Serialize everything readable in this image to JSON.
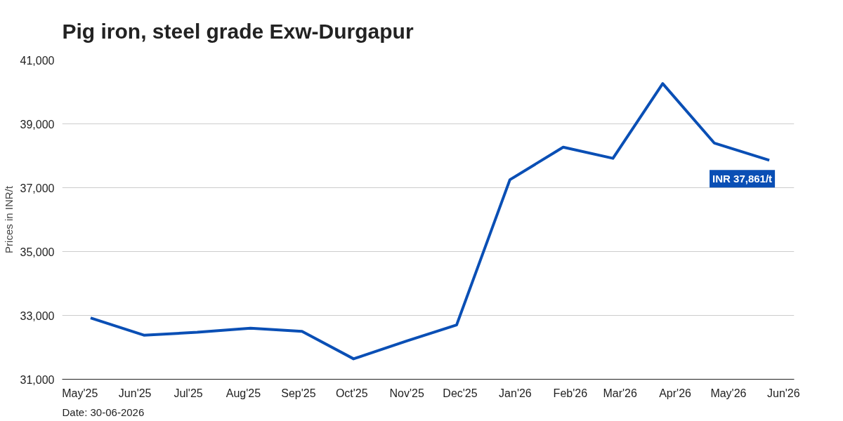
{
  "chart_data": {
    "type": "line",
    "title": "Pig iron, steel grade Exw-Durgapur",
    "ylabel": "Prices in INR/t",
    "x": [
      "2025-05-07",
      "2025-06-06",
      "2025-07-06",
      "2025-08-05",
      "2025-09-03",
      "2025-10-02",
      "2025-11-01",
      "2025-11-29",
      "2025-12-29",
      "2026-01-28",
      "2026-02-25",
      "2026-03-25",
      "2026-04-23",
      "2026-05-24"
    ],
    "series": [
      {
        "color": "#0a4fb5",
        "values": [
          32920,
          32380,
          32470,
          32600,
          32500,
          31640,
          32200,
          32700,
          37250,
          38270,
          37920,
          40260,
          38400,
          37861
        ]
      }
    ],
    "xlim": [
      "2025-04-21",
      "2026-06-07"
    ],
    "xticks": [
      {
        "value": "2025-05",
        "label": "May'25"
      },
      {
        "value": "2025-06",
        "label": "Jun'25"
      },
      {
        "value": "2025-07",
        "label": "Jul'25"
      },
      {
        "value": "2025-08",
        "label": "Aug'25"
      },
      {
        "value": "2025-09",
        "label": "Sep'25"
      },
      {
        "value": "2025-10",
        "label": "Oct'25"
      },
      {
        "value": "2025-11",
        "label": "Nov'25"
      },
      {
        "value": "2025-12",
        "label": "Dec'25"
      },
      {
        "value": "2026-01",
        "label": "Jan'26"
      },
      {
        "value": "2026-02",
        "label": "Feb'26"
      },
      {
        "value": "2026-03",
        "label": "Mar'26"
      },
      {
        "value": "2026-04",
        "label": "Apr'26"
      },
      {
        "value": "2026-05",
        "label": "May'26"
      },
      {
        "value": "2026-06",
        "label": "Jun'26"
      }
    ],
    "ylim": [
      31000,
      41000
    ],
    "yticks": [
      {
        "value": 31000,
        "label": "31,000"
      },
      {
        "value": 33000,
        "label": "33,000"
      },
      {
        "value": 35000,
        "label": "35,000"
      },
      {
        "value": 37000,
        "label": "37,000"
      },
      {
        "value": 39000,
        "label": "39,000"
      },
      {
        "value": 41000,
        "label": "41,000"
      }
    ],
    "grid": "y",
    "marker": "none",
    "line_style": "solid",
    "annotations": [
      {
        "text": "INR 37,861/t",
        "x": "2026-05-24",
        "y": 37861
      },
      "Date: 30-06-2026"
    ]
  }
}
